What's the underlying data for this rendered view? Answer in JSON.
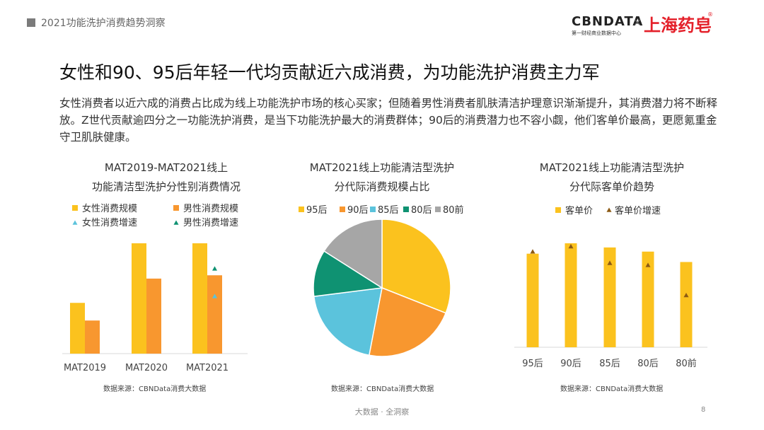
{
  "header": {
    "title": "2021功能洗护消费趋势洞察"
  },
  "logos": {
    "cbn": "CBNDATA",
    "cbn_sub": "第一财经商业数据中心",
    "times": "×",
    "brand": "上海药皂",
    "reg": "®"
  },
  "headline": "女性和90、95后年轻一代均贡献近六成消费，为功能洗护消费主力军",
  "description": "女性消费者以近六成的消费占比成为线上功能洗护市场的核心买家；但随着男性消费者肌肤清洁护理意识渐渐提升，其消费潜力将不断释放。Z世代贡献逾四分之一功能洗护消费，是当下功能洗护最大的消费群体；90后的消费潜力也不容小觑，他们客单价最高，更愿氪重金守卫肌肤健康。",
  "footer": {
    "text": "大数据 · 全洞察",
    "page": "8"
  },
  "colors": {
    "yellow": "#fbc21e",
    "orange": "#f8972f",
    "cyan": "#5bc3dc",
    "green": "#0f9272",
    "gray": "#a6a6a6",
    "marker": "#8c5a14"
  },
  "chart_data": [
    {
      "type": "bar",
      "title_lines": [
        "MAT2019-MAT2021线上",
        "功能清洁型洗护分性别消费情况"
      ],
      "categories": [
        "MAT2019",
        "MAT2020",
        "MAT2021"
      ],
      "series": [
        {
          "name": "女性消费规模",
          "kind": "bar",
          "values": [
            46,
            100,
            100
          ]
        },
        {
          "name": "男性消费规模",
          "kind": "bar",
          "values": [
            30,
            68,
            71
          ]
        },
        {
          "name": "女性消费增速",
          "kind": "marker",
          "values": [
            null,
            null,
            52
          ]
        },
        {
          "name": "男性消费增速",
          "kind": "marker",
          "values": [
            null,
            null,
            77
          ]
        }
      ],
      "ylim": [
        0,
        100
      ],
      "legend": "top",
      "source": "数据来源：CBNData消费大数据"
    },
    {
      "type": "pie",
      "title_lines": [
        "MAT2021线上功能清洁型洗护",
        "分代际消费规模占比"
      ],
      "slices": [
        {
          "label": "95后",
          "value": 31
        },
        {
          "label": "90后",
          "value": 22
        },
        {
          "label": "85后",
          "value": 20
        },
        {
          "label": "80后",
          "value": 11
        },
        {
          "label": "80前",
          "value": 16
        }
      ],
      "legend": "top",
      "source": "数据来源：CBNData消费大数据"
    },
    {
      "type": "bar",
      "title_lines": [
        "MAT2021线上功能清洁型洗护",
        "分代际客单价趋势"
      ],
      "categories": [
        "95后",
        "90后",
        "85后",
        "80后",
        "80前"
      ],
      "series": [
        {
          "name": "客单价",
          "kind": "bar",
          "values": [
            90,
            100,
            96,
            92,
            82
          ]
        },
        {
          "name": "客单价增速",
          "kind": "marker",
          "values": [
            92,
            97,
            81,
            79,
            50
          ]
        }
      ],
      "ylim": [
        0,
        100
      ],
      "legend": "top",
      "source": "数据来源：CBNData消费大数据"
    }
  ]
}
